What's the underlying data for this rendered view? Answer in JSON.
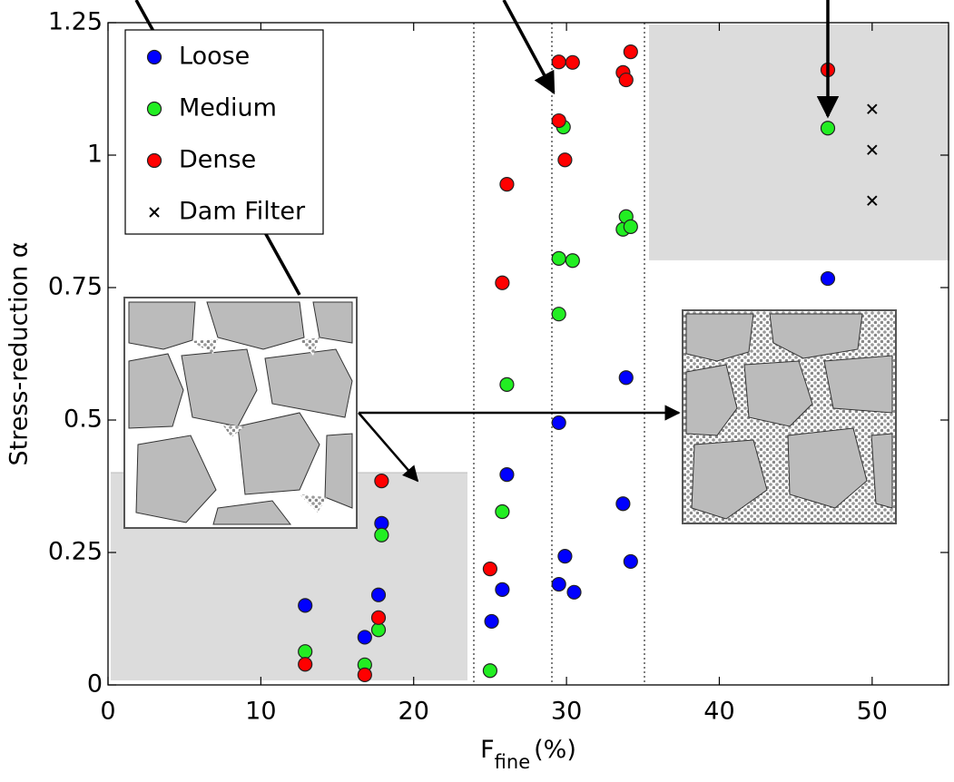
{
  "chart_data": {
    "type": "scatter",
    "ylabel": "Stress-reduction α",
    "xlabel": "F",
    "xlabel_subscript": "fine",
    "xlabel_suffix": "(%)",
    "xlim": [
      0,
      55
    ],
    "ylim": [
      0,
      1.25
    ],
    "xticks": [
      0,
      10,
      20,
      30,
      40,
      50
    ],
    "yticks": [
      0,
      0.25,
      0.5,
      0.75,
      1,
      1.25
    ],
    "grid": false,
    "legend": "upper left",
    "series": [
      {
        "name": "Loose",
        "color": "#0000ff",
        "marker": "circle",
        "x": [
          12.9,
          16.8,
          17.7,
          17.9,
          26.1,
          25.8,
          25.1,
          29.5,
          29.5,
          29.9,
          30.5,
          33.9,
          33.7,
          34.2,
          47.1
        ],
        "values": [
          0.15,
          0.09,
          0.17,
          0.305,
          0.397,
          0.18,
          0.12,
          0.495,
          0.19,
          0.243,
          0.175,
          0.58,
          0.342,
          0.233,
          0.767
        ]
      },
      {
        "name": "Medium",
        "color": "#22ee22",
        "marker": "circle",
        "x": [
          12.9,
          16.8,
          17.7,
          17.9,
          25.0,
          25.8,
          26.1,
          29.5,
          29.5,
          30.4,
          29.8,
          33.7,
          33.9,
          34.2,
          47.1
        ],
        "values": [
          0.063,
          0.038,
          0.104,
          0.283,
          0.027,
          0.327,
          0.567,
          0.7,
          0.805,
          0.801,
          1.053,
          0.86,
          0.884,
          0.865,
          1.051
        ]
      },
      {
        "name": "Dense",
        "color": "#ff0000",
        "marker": "circle",
        "x": [
          12.9,
          16.8,
          17.7,
          17.9,
          25.0,
          25.8,
          26.1,
          29.5,
          29.5,
          30.4,
          29.9,
          33.7,
          33.9,
          34.2,
          47.1
        ],
        "values": [
          0.039,
          0.019,
          0.127,
          0.385,
          0.219,
          0.759,
          0.945,
          1.065,
          1.176,
          1.175,
          0.991,
          1.156,
          1.142,
          1.195,
          1.161
        ]
      },
      {
        "name": "Dam Filter",
        "color": "#000000",
        "marker": "x",
        "x": [
          50,
          50,
          50
        ],
        "values": [
          1.087,
          1.01,
          0.914
        ]
      }
    ]
  }
}
